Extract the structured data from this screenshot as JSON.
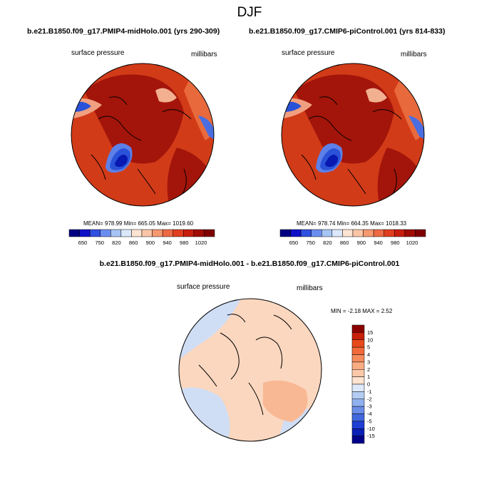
{
  "title": "DJF",
  "panels": [
    {
      "case_label": "b.e21.B1850.f09_g17.PMIP4-midHolo.001 (yrs 290-309)",
      "variable": "surface pressure",
      "units": "millibars",
      "stats": "MEAN= 978.99  Min= 665.05  Max= 1019.60"
    },
    {
      "case_label": "b.e21.B1850.f09_g17.CMIP6-piControl.001 (yrs 814-833)",
      "variable": "surface pressure",
      "units": "millibars",
      "stats": "MEAN= 978.74  Min= 664.35  Max= 1018.33"
    }
  ],
  "abs_colorbar": {
    "ticks": [
      "650",
      "750",
      "820",
      "860",
      "900",
      "940",
      "980",
      "1020"
    ],
    "colors": [
      "#000080",
      "#1010c8",
      "#3050e0",
      "#6a8ef0",
      "#a6c4f4",
      "#dbe8fb",
      "#fde3d2",
      "#fac5a7",
      "#f69970",
      "#ee6a44",
      "#e03e1e",
      "#c81e0e",
      "#a00c04",
      "#7e0000"
    ]
  },
  "diff": {
    "title": "b.e21.B1850.f09_g17.PMIP4-midHolo.001 - b.e21.B1850.f09_g17.CMIP6-piControl.001",
    "variable": "surface pressure",
    "units": "millibars",
    "stats": "MIN =  -2.18 MAX =   2.52"
  },
  "diff_colorbar": {
    "ticks": [
      "15",
      "10",
      "5",
      "4",
      "3",
      "2",
      "1",
      "0",
      "-1",
      "-2",
      "-3",
      "-4",
      "-5",
      "-10",
      "-15"
    ],
    "colors": [
      "#8b0000",
      "#c8200a",
      "#e84a1c",
      "#f26a38",
      "#f68c5c",
      "#f9ab82",
      "#fbc9a9",
      "#fde3d0",
      "#dde9fa",
      "#b5cdf3",
      "#8fb0ee",
      "#6a8ee8",
      "#4268de",
      "#1e3ed4",
      "#0a20b4",
      "#00008b"
    ]
  },
  "colors": {
    "abs_main": "#d23b18",
    "abs_dark": "#a3150a",
    "abs_light": "#e86a3c",
    "abs_low": "#2a52d8",
    "diff_pos": "#fbd7bf",
    "diff_neg": "#d0def5"
  }
}
